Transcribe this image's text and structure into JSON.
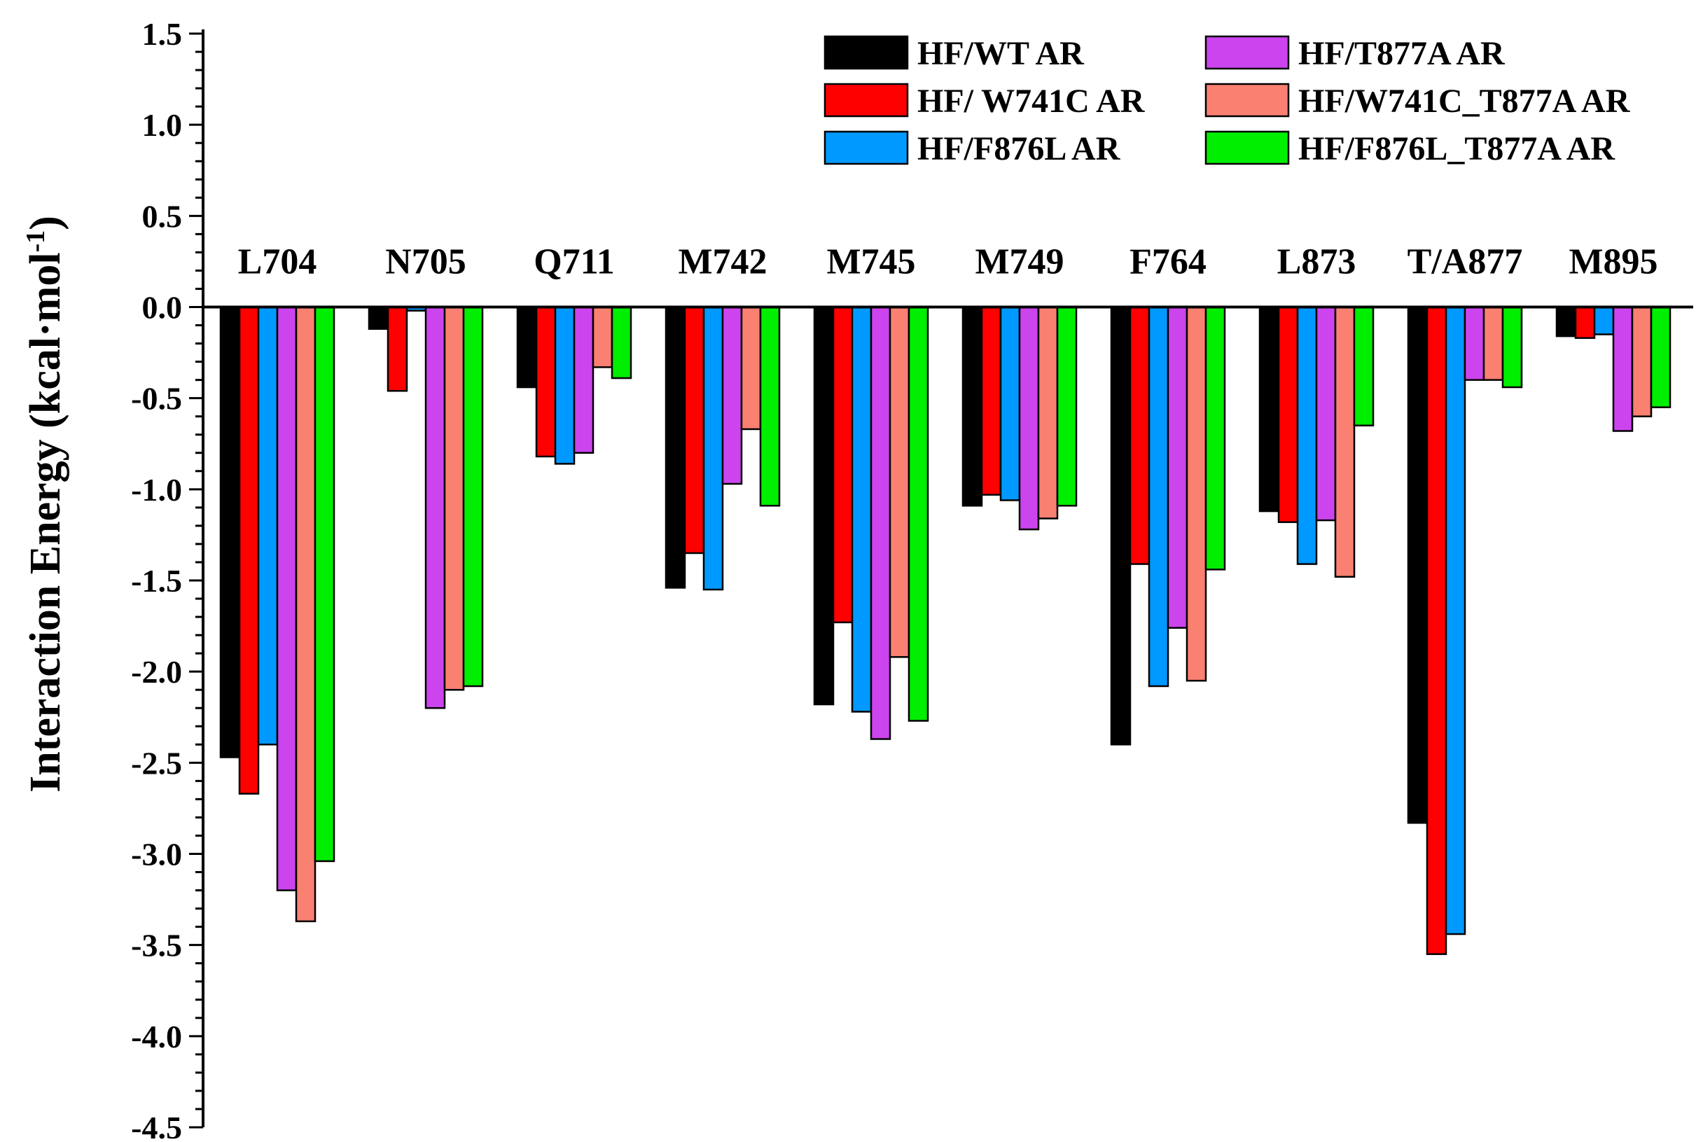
{
  "chart_data": {
    "type": "bar",
    "title": "",
    "xlabel": "",
    "ylabel": "Interaction Energy (kcal·mol",
    "ylabel_superscript": "-1",
    "ylabel_suffix": ")",
    "ylim": [
      -4.5,
      1.5
    ],
    "yticks": [
      1.5,
      1.0,
      0.5,
      0.0,
      -0.5,
      -1.0,
      -1.5,
      -2.0,
      -2.5,
      -3.0,
      -3.5,
      -4.0,
      -4.5
    ],
    "ytick_labels": [
      "1.5",
      "1.0",
      "0.5",
      "0.0",
      "-0.5",
      "-1.0",
      "-1.5",
      "-2.0",
      "-2.5",
      "-3.0",
      "-3.5",
      "-4.0",
      "-4.5"
    ],
    "categories": [
      "L704",
      "N705",
      "Q711",
      "M742",
      "M745",
      "M749",
      "F764",
      "L873",
      "T/A877",
      "M895"
    ],
    "legend_position": "top-right",
    "series": [
      {
        "name": "HF/WT AR",
        "color": "#000000",
        "values": [
          -2.47,
          -0.12,
          -0.44,
          -1.54,
          -2.18,
          -1.09,
          -2.4,
          -1.12,
          -2.83,
          -0.16
        ]
      },
      {
        "name": "HF/ W741C AR",
        "color": "#ff0000",
        "values": [
          -2.67,
          -0.46,
          -0.82,
          -1.35,
          -1.73,
          -1.03,
          -1.41,
          -1.18,
          -3.55,
          -0.17
        ]
      },
      {
        "name": "HF/F876L AR",
        "color": "#0099ff",
        "values": [
          -2.4,
          -0.02,
          -0.86,
          -1.55,
          -2.22,
          -1.06,
          -2.08,
          -1.41,
          -3.44,
          -0.15
        ]
      },
      {
        "name": "HF/T877A AR",
        "color": "#cc44ee",
        "values": [
          -3.2,
          -2.2,
          -0.8,
          -0.97,
          -2.37,
          -1.22,
          -1.76,
          -1.17,
          -0.4,
          -0.68
        ]
      },
      {
        "name": "HF/W741C_T877A AR",
        "color": "#fa8072",
        "values": [
          -3.37,
          -2.1,
          -0.33,
          -0.67,
          -1.92,
          -1.16,
          -2.05,
          -1.48,
          -0.4,
          -0.6
        ]
      },
      {
        "name": "HF/F876L_T877A AR",
        "color": "#00ee00",
        "values": [
          -3.04,
          -2.08,
          -0.39,
          -1.09,
          -2.27,
          -1.09,
          -1.44,
          -0.65,
          -0.44,
          -0.55
        ]
      }
    ]
  }
}
